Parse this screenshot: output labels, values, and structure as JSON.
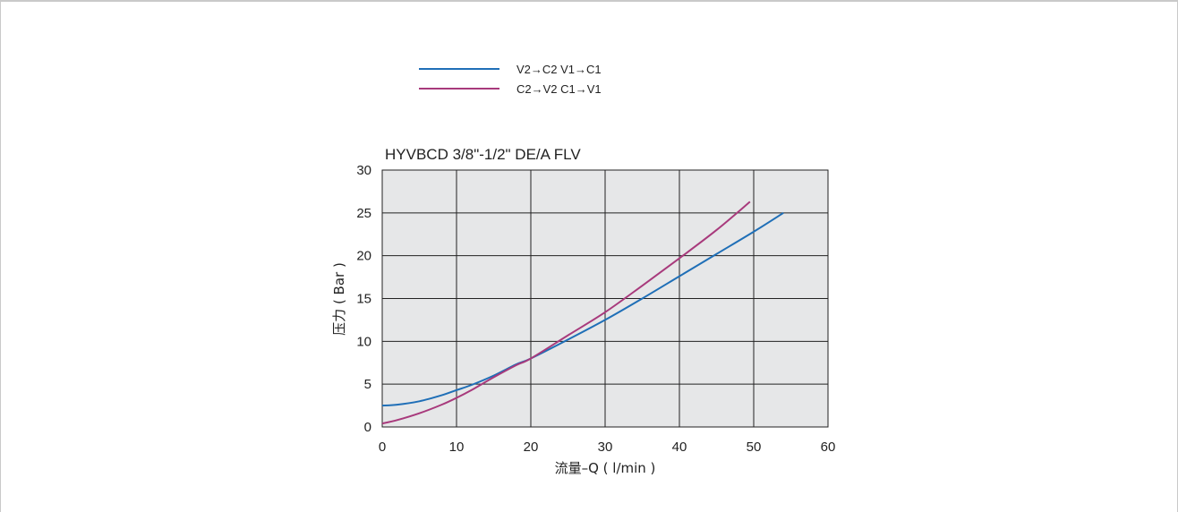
{
  "chart_data": {
    "type": "line",
    "title": "HYVBCD 3/8\"-1/2\"  DE/A FLV",
    "xlabel": "流量–Q ( l/min )",
    "ylabel": "压力 ( Bar )",
    "xlim": [
      0,
      60
    ],
    "ylim": [
      0,
      30
    ],
    "xticks": [
      0,
      10,
      20,
      30,
      40,
      50,
      60
    ],
    "yticks": [
      0,
      5,
      10,
      15,
      20,
      25,
      30
    ],
    "grid": true,
    "legend_position": "top",
    "series": [
      {
        "name": "V2→C2  V1→C1",
        "color": "#1f6fb7",
        "x": [
          0,
          2,
          5,
          8,
          10,
          12,
          15,
          18,
          20,
          25,
          30,
          35,
          40,
          45,
          50,
          54
        ],
        "y": [
          2.5,
          2.6,
          3.0,
          3.7,
          4.3,
          4.9,
          6.0,
          7.3,
          8.0,
          10.2,
          12.5,
          15.0,
          17.6,
          20.2,
          22.8,
          25.0
        ]
      },
      {
        "name": "C2→V2  C1→V1",
        "color": "#a83a7c",
        "x": [
          0,
          2,
          5,
          8,
          10,
          12,
          15,
          18,
          20,
          25,
          30,
          35,
          40,
          45,
          49.5
        ],
        "y": [
          0.4,
          0.8,
          1.6,
          2.6,
          3.4,
          4.3,
          5.8,
          7.2,
          8.0,
          10.7,
          13.4,
          16.5,
          19.7,
          23.0,
          26.3
        ]
      }
    ]
  }
}
